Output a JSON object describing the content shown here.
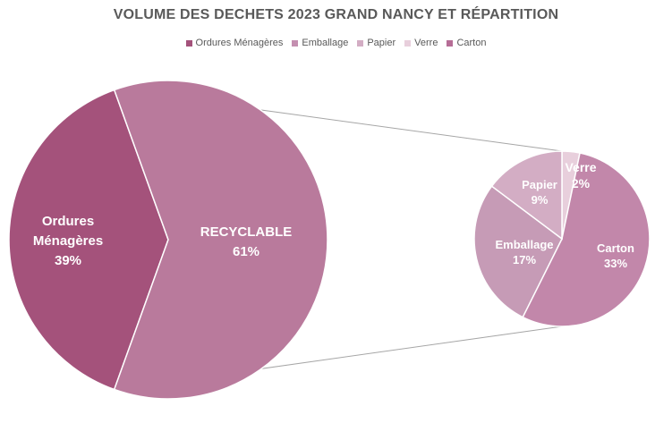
{
  "chart_data": {
    "type": "pie",
    "subtype": "pie-of-pie",
    "title": "VOLUME DES DECHETS 2023 GRAND NANCY ET RÉPARTITION",
    "legend": [
      {
        "label": "Ordures Ménagères",
        "color": "#a4527b"
      },
      {
        "label": "Emballage",
        "color": "#c48fb0"
      },
      {
        "label": "Papier",
        "color": "#d3adc4"
      },
      {
        "label": "Verre",
        "color": "#e8cfdc"
      },
      {
        "label": "Carton",
        "color": "#b66d96"
      }
    ],
    "main_pie": [
      {
        "name": "Ordures Ménagères",
        "label_lines": [
          "Ordures",
          "Ménagères"
        ],
        "value": 39,
        "pct_label": "39%",
        "color": "#a4527b"
      },
      {
        "name": "RECYCLABLE",
        "label_lines": [
          "RECYCLABLE"
        ],
        "value": 61,
        "pct_label": "61%",
        "color": "#b97a9c"
      }
    ],
    "secondary_pie": [
      {
        "name": "Verre",
        "value": 2,
        "pct_label": "2%",
        "color": "#e8cfdc"
      },
      {
        "name": "Carton",
        "value": 33,
        "pct_label": "33%",
        "color": "#c287aa"
      },
      {
        "name": "Emballage",
        "value": 17,
        "pct_label": "17%",
        "color": "#c69bb6"
      },
      {
        "name": "Papier",
        "value": 9,
        "pct_label": "9%",
        "color": "#d3adc4"
      }
    ],
    "colors": {
      "title": "#595959",
      "connector": "#a6a6a6"
    }
  }
}
